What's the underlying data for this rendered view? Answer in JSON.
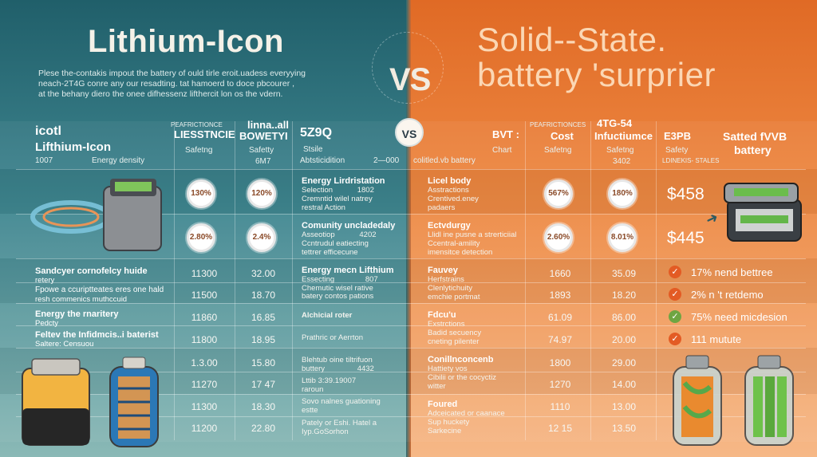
{
  "titles": {
    "left": "Lithium-Icon",
    "right_line1": "Solid--State.",
    "right_line2": "battery 'surprier",
    "vs_big": "VS",
    "vs_badge": "VS"
  },
  "intro": [
    "Plese the-contakis impout the battery of ould tirle eroit.uadess everyying",
    "neach-2T4G conre any our resadting. tat hamoerd to doce pbcourer ,",
    "at the behany diero the onee difhessenz lifthercit lon os the vdern."
  ],
  "left_header": {
    "col0_l1": "icotl",
    "col0_l2": "Lifthium-Icon",
    "col0_l3": "1007",
    "col0_l4": "Energy density",
    "col1_top": "PEAFRICTIONCE",
    "col1_main": "LIESSTNCIE",
    "col1_sub": "Safetng",
    "col2_top": "linna..all",
    "col2_main": "BOWETYI",
    "col2_sub": "Safetty",
    "col2_val": "6M7",
    "col3_main": "5Z9Q",
    "col3_sub": "Stsile",
    "col3_val": "Abtsticidition",
    "col3_num": "2—000"
  },
  "right_header": {
    "lead": "colitled.vb battery",
    "col0_main": "BVT :",
    "col0_sub": "Chart",
    "col1_top": "PEAFRICTIONCES",
    "col1_main": "Cost",
    "col1_sub": "Safetng",
    "col2_top": "4TG-54",
    "col2_main": "Infuctiumce",
    "col2_sub": "Safetng",
    "col2_val": "3402",
    "col3_main": "E3PB",
    "col3_sub": "Safety",
    "col3_val": "LDINEKIS- STALES",
    "col4_main": "Satted fVVB",
    "col4_sub": "battery"
  },
  "left_rows": [
    {
      "c1": "130%",
      "c2": "120%",
      "title": "Energy Lirdristation",
      "d1": "Selection",
      "d1v": "1802",
      "d2": "Cremntid wilel natrey",
      "d3": "restral Action"
    },
    {
      "c1": "2.80%",
      "c2": "2.4%",
      "title": "Comunity uncladedaly",
      "d1": "Asseotiop",
      "d1v": "4202",
      "d2": "Ccntrudul eatiecting",
      "d3": "tettrer efficecune"
    },
    {
      "label": "Sandcyer cornofelcy huide",
      "sub": "retery",
      "v1": "11300",
      "v2": "32.00",
      "title": "Energy mecn Lifthium",
      "d1": "Essecting",
      "d1v": "807",
      "d2": "Chemutic wisel rative"
    },
    {
      "label": "Fpowe a ccuriptteates eres one hald",
      "sub": "resh commenics muthccuid",
      "v1": "11500",
      "v2": "18.70",
      "d3": "batery contos pations"
    },
    {
      "label": "Energy the rnaritery",
      "sub": "Pedcty",
      "v1": "11860",
      "v2": "16.85",
      "title": "Alchicial roter"
    },
    {
      "label": "Feltev the Infidmcis..i baterist",
      "sub": "Saltere: Censuou",
      "v1": "11800",
      "v2": "18.95",
      "title": "Prathric or Aerrton"
    },
    {
      "v1": "1.3.00",
      "v2": "15.80",
      "title": "Blehtub oine tiltrifuon",
      "d1": "buttery",
      "d1v": "4432"
    },
    {
      "v1": "11270",
      "v2": "17 47",
      "title": "Lttib 3:39.19007",
      "d3": "raroun"
    },
    {
      "v1": "11300",
      "v2": "18.30",
      "title": "Sovo nalnes guationing",
      "d3": "estte"
    },
    {
      "v1": "11200",
      "v2": "22.80",
      "title": "Pately or Eshi. Hatel a",
      "d3": "Iyp.GoSorhon"
    }
  ],
  "right_rows": [
    {
      "title": "Licel body",
      "d1": "Asstractions",
      "d2": "Crentived.eney",
      "d3": "padaers",
      "c1": "567%",
      "c2": "180%",
      "price": "$458"
    },
    {
      "title": "Ectvdurgy",
      "d1": "Llidl ine pusne a strerticiial",
      "d2": "Ccentral-amility",
      "d3": "imensitce detection",
      "c1": "2.60%",
      "c2": "8.01%",
      "price": "$445"
    },
    {
      "title": "Fauvey",
      "d1": "Herfstrains",
      "d2": "Clenlytichuity",
      "d3": "emchie portmat",
      "v1": "1660",
      "v2": "35.09",
      "note": "17% nend bettree"
    },
    {
      "v1": "1893",
      "v2": "18.20",
      "note": "2% n 't retdemo"
    },
    {
      "title": "Fdcu'u",
      "d1": "Exstrctions",
      "d2": "Badid secuency",
      "d3": "cneting pilenter",
      "v1": "61.09",
      "v2": "86.00",
      "note": "75% need micdesion"
    },
    {
      "v1": "74.97",
      "v2": "20.00",
      "note": "111 mutute"
    },
    {
      "title": "Conillnconcenb",
      "d1": "Hattiety vos",
      "d2": "Cibilii or the cocyctiz",
      "d3": "witter",
      "v1": "1800",
      "v2": "29.00"
    },
    {
      "v1": "1270",
      "v2": "14.00"
    },
    {
      "title": "Foured",
      "d1": "Adceicated or caanace",
      "d2": "Sup huckety",
      "d3": "Sarkecine",
      "v1": "1110",
      "v2": "13.00"
    },
    {
      "v1": "12 15",
      "v2": "13.50"
    }
  ],
  "icons": [
    "battery-pack-icon",
    "solid-state-battery-icon",
    "cylinder-cell-icon",
    "check-icon"
  ],
  "colors": {
    "teal": "#205f6a",
    "orange": "#e06a25",
    "check_red": "#e35b24",
    "check_green": "#6fa542"
  }
}
